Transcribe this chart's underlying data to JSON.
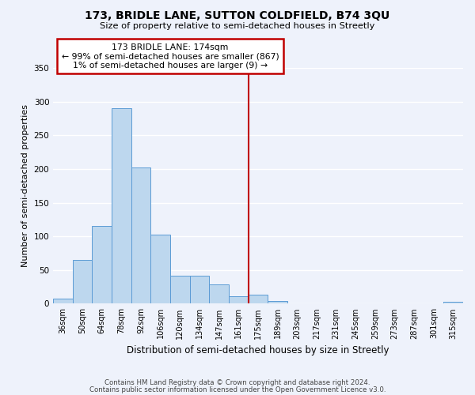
{
  "title": "173, BRIDLE LANE, SUTTON COLDFIELD, B74 3QU",
  "subtitle": "Size of property relative to semi-detached houses in Streetly",
  "xlabel": "Distribution of semi-detached houses by size in Streetly",
  "ylabel": "Number of semi-detached properties",
  "bin_labels": [
    "36sqm",
    "50sqm",
    "64sqm",
    "78sqm",
    "92sqm",
    "106sqm",
    "120sqm",
    "134sqm",
    "147sqm",
    "161sqm",
    "175sqm",
    "189sqm",
    "203sqm",
    "217sqm",
    "231sqm",
    "245sqm",
    "259sqm",
    "273sqm",
    "287sqm",
    "301sqm",
    "315sqm"
  ],
  "bar_heights": [
    8,
    65,
    115,
    290,
    202,
    103,
    41,
    41,
    29,
    11,
    13,
    4,
    0,
    1,
    0,
    0,
    0,
    0,
    0,
    0,
    3
  ],
  "bar_color": "#bdd7ee",
  "bar_edge_color": "#5b9bd5",
  "vline_x_idx": 10,
  "vline_color": "#c00000",
  "annotation_title": "173 BRIDLE LANE: 174sqm",
  "annotation_line1": "← 99% of semi-detached houses are smaller (867)",
  "annotation_line2": "1% of semi-detached houses are larger (9) →",
  "annotation_box_color": "#c00000",
  "ylim": [
    0,
    350
  ],
  "yticks": [
    0,
    50,
    100,
    150,
    200,
    250,
    300,
    350
  ],
  "background_color": "#eef2fb",
  "grid_color": "#ffffff",
  "footer1": "Contains HM Land Registry data © Crown copyright and database right 2024.",
  "footer2": "Contains public sector information licensed under the Open Government Licence v3.0."
}
